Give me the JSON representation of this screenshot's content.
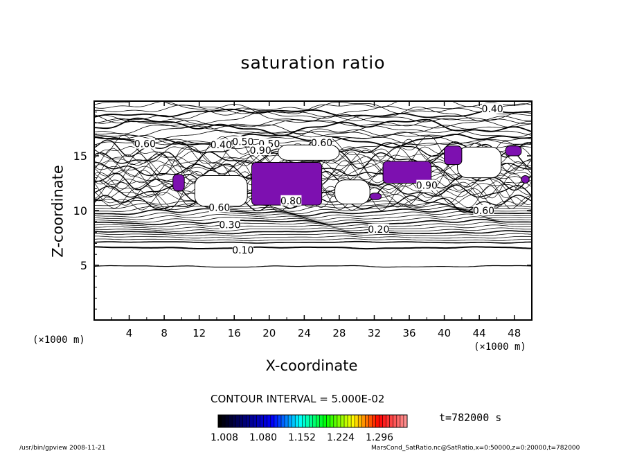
{
  "chart_data": {
    "type": "contour",
    "title": "saturation ratio",
    "xlabel": "X-coordinate",
    "ylabel": "Z-coordinate",
    "x_unit": "(×1000 m)",
    "x_unit_right": "(×1000 m)",
    "xlim": [
      0,
      50
    ],
    "ylim": [
      0,
      20
    ],
    "x_ticks": [
      "4",
      "8",
      "12",
      "16",
      "20",
      "24",
      "28",
      "32",
      "36",
      "40",
      "44",
      "48"
    ],
    "y_ticks": [
      "5",
      "10",
      "15"
    ],
    "contour_interval_text": "CONTOUR INTERVAL = 5.000E-02",
    "contour_interval": 0.05,
    "contour_labels": [
      {
        "text": "0.10",
        "x": 17.0,
        "z": 6.4
      },
      {
        "text": "0.20",
        "x": 32.5,
        "z": 8.3
      },
      {
        "text": "0.30",
        "x": 15.5,
        "z": 8.7
      },
      {
        "text": "0.60",
        "x": 5.8,
        "z": 16.1
      },
      {
        "text": "0.40",
        "x": 14.5,
        "z": 16.0
      },
      {
        "text": "0.50",
        "x": 17.0,
        "z": 16.3
      },
      {
        "text": "0.50",
        "x": 20.0,
        "z": 16.1
      },
      {
        "text": "0.60",
        "x": 26.0,
        "z": 16.2
      },
      {
        "text": "0.90",
        "x": 19.0,
        "z": 15.5
      },
      {
        "text": "0.40",
        "x": 45.5,
        "z": 19.3
      },
      {
        "text": "0.60",
        "x": 44.5,
        "z": 10.0
      },
      {
        "text": "0.90",
        "x": 38.0,
        "z": 12.3
      },
      {
        "text": "0.60",
        "x": 14.3,
        "z": 10.3
      },
      {
        "text": "0.80",
        "x": 22.5,
        "z": 10.9
      }
    ],
    "supersaturated_regions": [
      {
        "x": [
          9.0,
          10.3
        ],
        "z": [
          11.8,
          13.3
        ]
      },
      {
        "x": [
          18.0,
          26.0
        ],
        "z": [
          10.5,
          14.4
        ]
      },
      {
        "x": [
          31.5,
          32.8
        ],
        "z": [
          11.0,
          11.6
        ]
      },
      {
        "x": [
          33.0,
          38.5
        ],
        "z": [
          12.5,
          14.5
        ]
      },
      {
        "x": [
          40.0,
          42.0
        ],
        "z": [
          14.2,
          15.9
        ]
      },
      {
        "x": [
          47.0,
          48.8
        ],
        "z": [
          15.0,
          15.9
        ]
      },
      {
        "x": [
          48.8,
          49.7
        ],
        "z": [
          12.5,
          13.2
        ]
      }
    ],
    "colorbar": {
      "labels": [
        "1.008",
        "1.080",
        "1.152",
        "1.224",
        "1.296"
      ],
      "colors": [
        "#000000",
        "#000080",
        "#0000ff",
        "#00ffff",
        "#00ff00",
        "#ffff00",
        "#ff0000",
        "#ff9090"
      ]
    },
    "fill_color": "#7d10b0",
    "time_label": "t=782000 s"
  },
  "footer": {
    "program": "/usr/bin/gpview  2008-11-21",
    "source": "MarsCond_SatRatio.nc@SatRatio,x=0:50000,z=0:20000,t=782000"
  }
}
